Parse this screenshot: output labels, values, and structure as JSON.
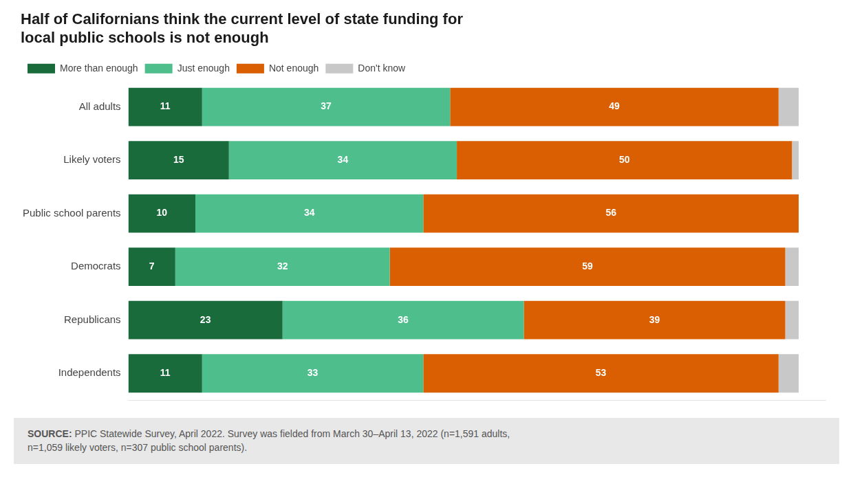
{
  "chart_data": {
    "type": "bar",
    "orientation": "horizontal",
    "stacked": true,
    "title": "Half of Californians think the current level of state funding for\nlocal public schools is not enough",
    "categories": [
      "All adults",
      "Likely voters",
      "Public school parents",
      "Democrats",
      "Republicans",
      "Independents"
    ],
    "series": [
      {
        "name": "More than enough",
        "color": "#1a6b3c",
        "values": [
          11,
          15,
          10,
          7,
          23,
          11
        ],
        "data_labels": true
      },
      {
        "name": "Just enough",
        "color": "#4dbe8c",
        "values": [
          37,
          34,
          34,
          32,
          36,
          33
        ],
        "data_labels": true
      },
      {
        "name": "Not enough",
        "color": "#d95f02",
        "values": [
          49,
          50,
          56,
          59,
          39,
          53
        ],
        "data_labels": true
      },
      {
        "name": "Don't know",
        "color": "#c8c8c8",
        "values": [
          3,
          1,
          0,
          2,
          2,
          3
        ],
        "data_labels": false
      }
    ],
    "xlim": [
      0,
      104
    ],
    "tick_labels": "y",
    "grid": false,
    "legend": "top",
    "annotations": [
      "SOURCE:",
      "PPIC Statewide Survey, April 2022. Survey was fielded from March 30–April 13, 2022 (n=1,591 adults,\nn=1,059 likely voters, n=307 public school parents)."
    ]
  }
}
